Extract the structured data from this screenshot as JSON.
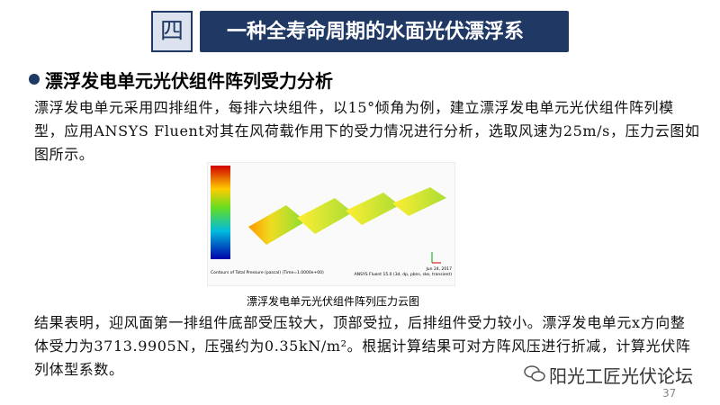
{
  "header": {
    "number": "四",
    "title": "一种全寿命周期的水面光伏漂浮系"
  },
  "section": {
    "heading": "漂浮发电单元光伏组件阵列受力分析",
    "paragraphs": [
      "漂浮发电单元采用四排组件，每排六块组件，以15°倾角为例，建立漂浮发电单元光伏组件阵列模型，应用ANSYS Fluent对其在风荷载作用下的受力情况进行分析，选取风速为25m/s，压力云图如图所示。",
      "结果表明，迎风面第一排组件底部受压较大，顶部受拉，后排组件受力较小。漂浮发电单元x方向整体受力为3713.9905N，压强约为0.35kN/m²。根据计算结果可对方阵风压进行折减，计算光伏阵列体型系数。"
    ]
  },
  "figure": {
    "footer_left": "Contours of Total Pressure (pascal)  (Time=1.0000e+00)",
    "footer_date": "Jun 24, 2017",
    "footer_right": "ANSYS Fluent 15.0 (3d, dp, pbns, ske, transient)",
    "caption": "漂浮发电单元光伏组件阵列压力云图"
  },
  "watermark": "阳光工匠光伏论坛",
  "page_number": "37"
}
